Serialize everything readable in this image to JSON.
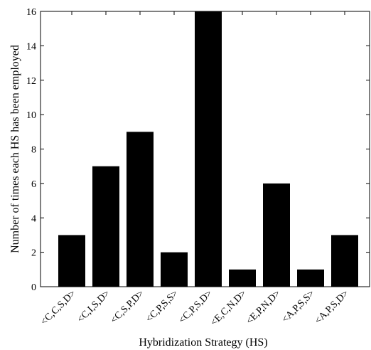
{
  "chart_data": {
    "type": "bar",
    "title": "",
    "xlabel": "Hybridization Strategy (HS)",
    "ylabel": "Number of times each HS has been employed",
    "categories": [
      "<C,C,S,D>",
      "<C,I,S,D>",
      "<C,S,P,D>",
      "<C,P,S,S>",
      "<C,P,S,D>",
      "<E,C,N,D>",
      "<E,P,N,D>",
      "<A,P,S,S>",
      "<A,P,S,D>"
    ],
    "values": [
      3,
      7,
      9,
      2,
      16,
      1,
      6,
      1,
      3
    ],
    "ylim": [
      0,
      16
    ],
    "yticks": [
      0,
      2,
      4,
      6,
      8,
      10,
      12,
      14,
      16
    ],
    "grid": false,
    "bar_color": "#000000"
  }
}
